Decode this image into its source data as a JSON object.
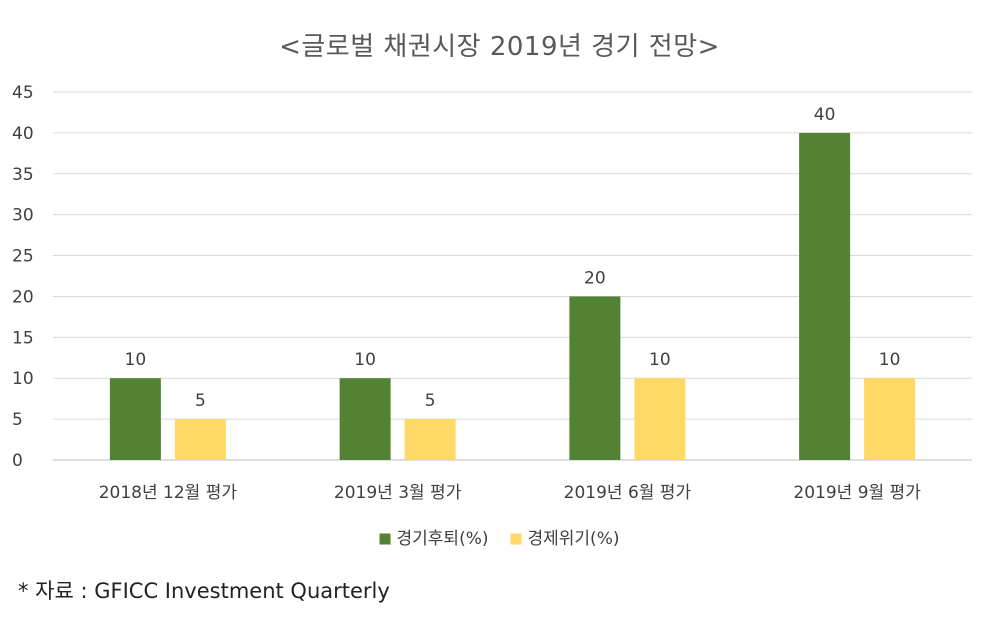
{
  "chart_data": {
    "type": "bar",
    "title": "<글로벌 채권시장 2019년 경기 전망>",
    "categories": [
      "2018년 12월 평가",
      "2019년 3월 평가",
      "2019년 6월 평가",
      "2019년 9월 평가"
    ],
    "series": [
      {
        "name": "경기후퇴(%)",
        "values": [
          10,
          10,
          20,
          40
        ],
        "color": "#548235"
      },
      {
        "name": "경제위기(%)",
        "values": [
          5,
          5,
          10,
          10
        ],
        "color": "#FFD966"
      }
    ],
    "ylim": [
      0,
      45
    ],
    "yticks": [
      0,
      5,
      10,
      15,
      20,
      25,
      30,
      35,
      40,
      45
    ],
    "grid": true,
    "legend": "bottom",
    "data_labels": true
  },
  "source_note": "* 자료 : GFICC Investment Quarterly",
  "colors": {
    "gridline": "#D9D9D9",
    "axis_line": "#BFBFBF"
  }
}
